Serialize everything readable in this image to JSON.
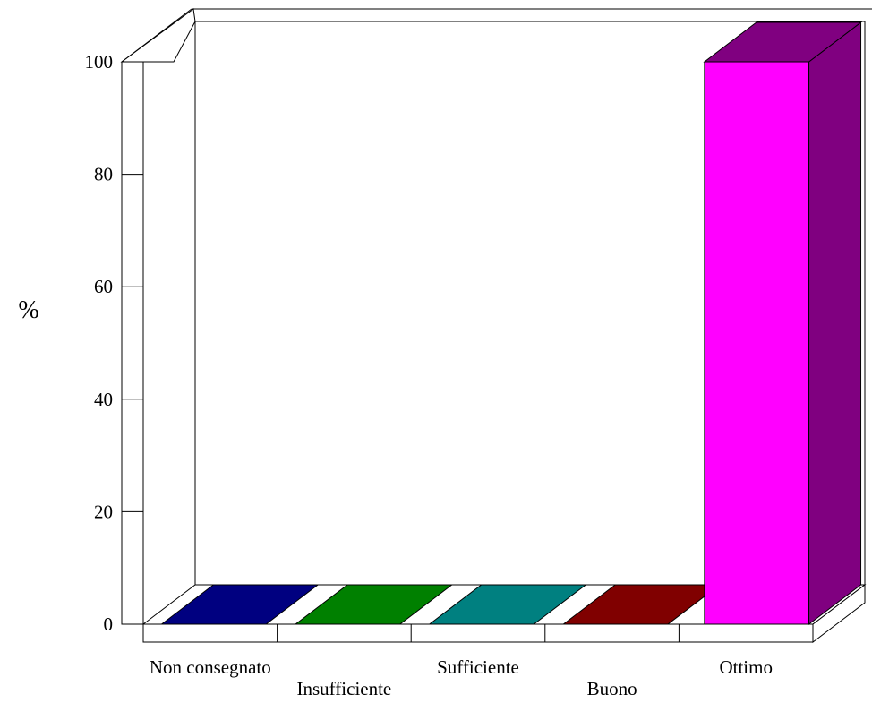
{
  "chart_data": {
    "type": "bar",
    "categories": [
      "Non consegnato",
      "Insufficiente",
      "Sufficiente",
      "Buono",
      "Ottimo"
    ],
    "values": [
      0,
      0,
      0,
      0,
      100
    ],
    "ylabel": "%",
    "ylim": [
      0,
      100
    ],
    "yticks": [
      0,
      20,
      40,
      60,
      80,
      100
    ],
    "grid": false,
    "style": "3d",
    "colors": {
      "front": [
        "#000080",
        "#008000",
        "#008080",
        "#800000",
        "#FF00FF"
      ],
      "side": [
        "#000050",
        "#005000",
        "#005050",
        "#500000",
        "#800080"
      ],
      "top": [
        "#000080",
        "#008000",
        "#008080",
        "#800000",
        "#800080"
      ]
    }
  }
}
